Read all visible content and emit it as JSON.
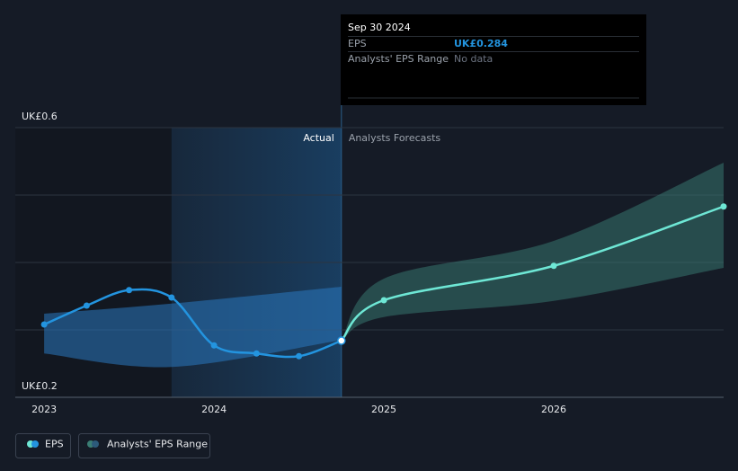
{
  "chart_data": {
    "type": "line",
    "x": [
      2023,
      2023.25,
      2023.5,
      2023.75,
      2024,
      2024.25,
      2024.5,
      2024.75,
      2025,
      2026,
      2027
    ],
    "series": [
      {
        "name": "EPS",
        "color": "#2394df",
        "forecast_color": "#6ee7d5",
        "values": [
          0.308,
          0.336,
          0.359,
          0.348,
          0.277,
          0.265,
          0.261,
          0.284,
          0.344,
          0.395,
          0.483
        ]
      }
    ],
    "ranges": [
      {
        "x": [
          2023,
          2023.75,
          2024.75
        ],
        "low": [
          0.265,
          0.245,
          0.285
        ],
        "high": [
          0.324,
          0.339,
          0.364
        ],
        "color": "#2a78c0"
      },
      {
        "name": "Analysts' EPS Range",
        "color": "#3a7d73",
        "x": [
          2024.75,
          2025,
          2026,
          2027
        ],
        "low": [
          0.284,
          0.319,
          0.343,
          0.392
        ],
        "high": [
          0.284,
          0.376,
          0.432,
          0.548
        ]
      }
    ],
    "actual_end": 2024.75,
    "actual_label": "Actual",
    "forecast_label": "Analysts Forecasts",
    "xlim": [
      2022.83,
      2027
    ],
    "xticks": [
      2023,
      2024,
      2025,
      2026
    ],
    "ylim": [
      0.2,
      0.6
    ],
    "yticks": [
      {
        "value": 0.2,
        "label": "UK£0.2"
      },
      {
        "value": 0.6,
        "label": "UK£0.6"
      }
    ],
    "grid_lines": [
      0.3,
      0.4,
      0.5
    ],
    "tooltip": {
      "date": "Sep 30 2024",
      "rows": [
        {
          "label": "EPS",
          "value": "UK£0.284"
        },
        {
          "label": "Analysts' EPS Range",
          "value": "No data"
        }
      ]
    }
  }
}
